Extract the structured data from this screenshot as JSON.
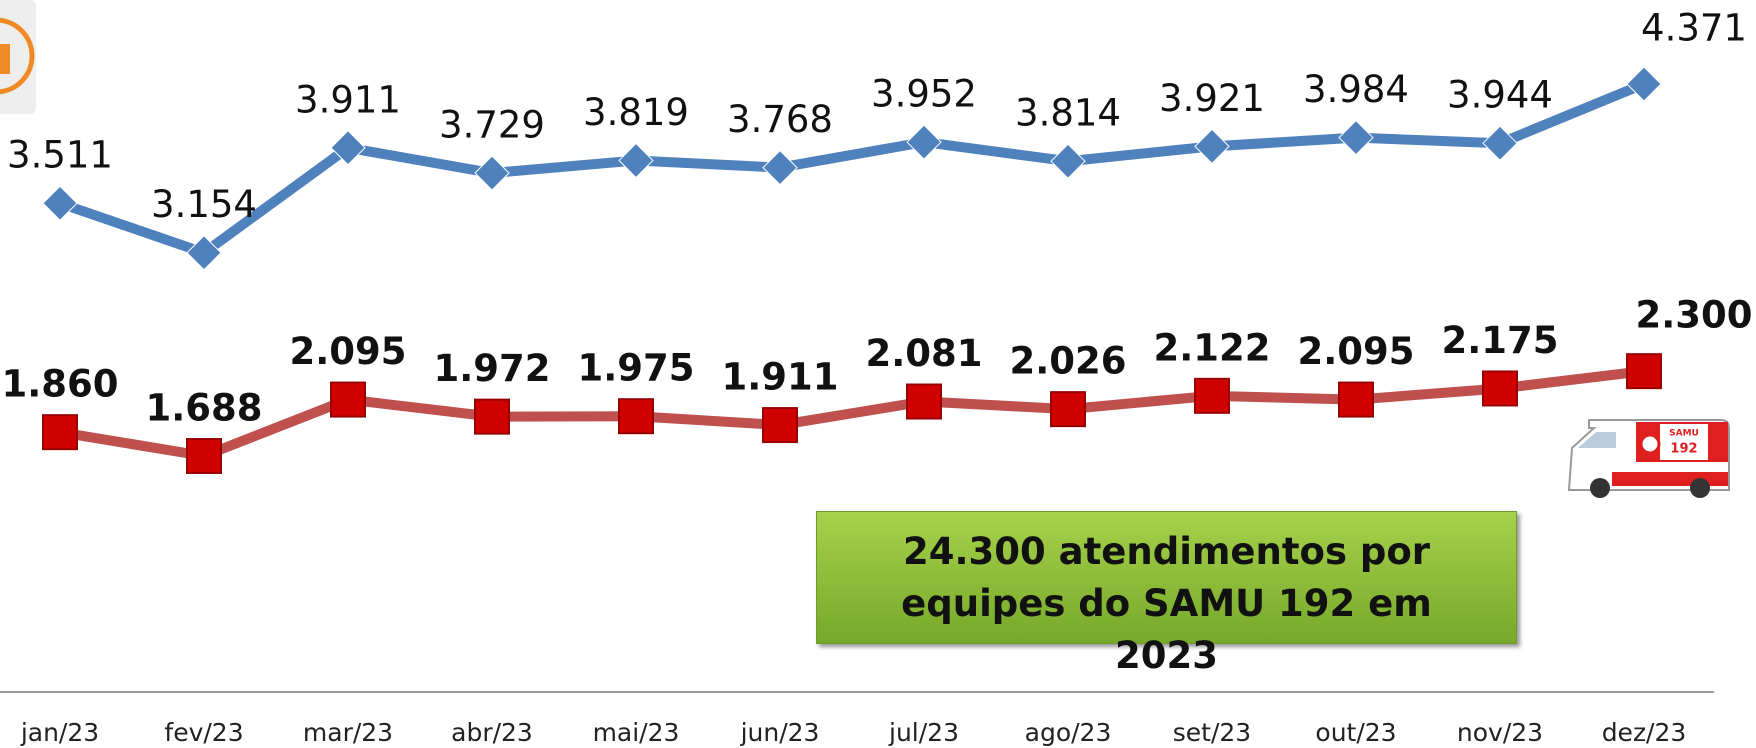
{
  "chart_data": {
    "type": "line",
    "categories": [
      "jan/23",
      "fev/23",
      "mar/23",
      "abr/23",
      "mai/23",
      "jun/23",
      "jul/23",
      "ago/23",
      "set/23",
      "out/23",
      "nov/23",
      "dez/23"
    ],
    "series": [
      {
        "color": "#4f81bd",
        "marker": "diamond",
        "bold": false,
        "values": [
          3511,
          3154,
          3911,
          3729,
          3819,
          3768,
          3952,
          3814,
          3921,
          3984,
          3944,
          4371
        ],
        "value_labels": [
          "3.511",
          "3.154",
          "3.911",
          "3.729",
          "3.819",
          "3.768",
          "3.952",
          "3.814",
          "3.921",
          "3.984",
          "3.944",
          "4.371"
        ]
      },
      {
        "color": "#c0504d",
        "marker": "square",
        "bold": true,
        "values": [
          1860,
          1688,
          2095,
          1972,
          1975,
          1911,
          2081,
          2026,
          2122,
          2095,
          2175,
          2300
        ],
        "value_labels": [
          "1.860",
          "1.688",
          "2.095",
          "1.972",
          "1.975",
          "1.911",
          "2.081",
          "2.026",
          "2.122",
          "2.095",
          "2.175",
          "2.300"
        ]
      }
    ],
    "annotation": "24.300 atendimentos por equipes do SAMU 192 em 2023",
    "ambulance_text": [
      "SAMU",
      "192"
    ]
  }
}
